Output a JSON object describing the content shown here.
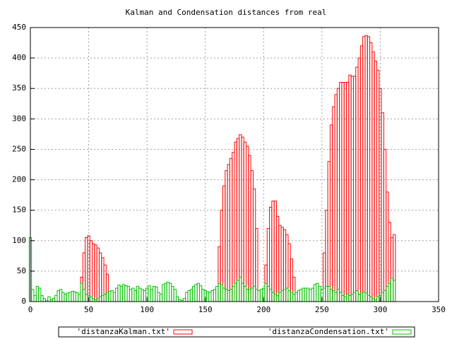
{
  "chart_data": {
    "type": "bar",
    "title": "Kalman and Condensation distances from real",
    "xlim": [
      0,
      350
    ],
    "xticks": [
      0,
      50,
      100,
      150,
      200,
      250,
      300,
      350
    ],
    "ylim": [
      0,
      450
    ],
    "yticks": [
      0,
      50,
      100,
      150,
      200,
      250,
      300,
      350,
      400,
      450
    ],
    "grid": true,
    "legend": "bottom",
    "x": [
      0,
      2,
      4,
      6,
      8,
      10,
      12,
      14,
      16,
      18,
      20,
      22,
      24,
      26,
      28,
      30,
      32,
      34,
      36,
      38,
      40,
      42,
      44,
      46,
      48,
      50,
      52,
      54,
      56,
      58,
      60,
      62,
      64,
      66,
      68,
      70,
      72,
      74,
      76,
      78,
      80,
      82,
      84,
      86,
      88,
      90,
      92,
      94,
      96,
      98,
      100,
      102,
      104,
      106,
      108,
      110,
      112,
      114,
      116,
      118,
      120,
      122,
      124,
      126,
      128,
      130,
      132,
      134,
      136,
      138,
      140,
      142,
      144,
      146,
      148,
      150,
      152,
      154,
      156,
      158,
      160,
      162,
      164,
      166,
      168,
      170,
      172,
      174,
      176,
      178,
      180,
      182,
      184,
      186,
      188,
      190,
      192,
      194,
      196,
      198,
      200,
      202,
      204,
      206,
      208,
      210,
      212,
      214,
      216,
      218,
      220,
      222,
      224,
      226,
      228,
      230,
      232,
      234,
      236,
      238,
      240,
      242,
      244,
      246,
      248,
      250,
      252,
      254,
      256,
      258,
      260,
      262,
      264,
      266,
      268,
      270,
      272,
      274,
      276,
      278,
      280,
      282,
      284,
      286,
      288,
      290,
      292,
      294,
      296,
      298,
      300,
      302,
      304,
      306,
      308,
      310,
      312
    ],
    "series": [
      {
        "name": "'distanzaKalman.txt'",
        "color": "#ff0000",
        "values": [
          0,
          0,
          0,
          0,
          0,
          0,
          0,
          0,
          0,
          0,
          0,
          0,
          0,
          0,
          0,
          0,
          0,
          0,
          0,
          0,
          0,
          0,
          40,
          80,
          105,
          108,
          100,
          95,
          93,
          88,
          80,
          72,
          60,
          45,
          0,
          0,
          0,
          0,
          0,
          0,
          0,
          0,
          0,
          0,
          0,
          0,
          0,
          0,
          0,
          0,
          0,
          0,
          0,
          0,
          0,
          0,
          0,
          0,
          0,
          0,
          0,
          0,
          0,
          0,
          0,
          0,
          0,
          0,
          0,
          0,
          0,
          0,
          0,
          0,
          0,
          0,
          0,
          0,
          0,
          0,
          0,
          90,
          150,
          190,
          215,
          225,
          235,
          245,
          262,
          268,
          274,
          270,
          262,
          255,
          240,
          215,
          185,
          120,
          0,
          0,
          0,
          60,
          120,
          155,
          165,
          165,
          140,
          125,
          122,
          118,
          110,
          95,
          70,
          40,
          0,
          0,
          0,
          0,
          0,
          0,
          0,
          0,
          0,
          0,
          0,
          0,
          80,
          150,
          230,
          290,
          320,
          340,
          350,
          360,
          360,
          360,
          360,
          372,
          370,
          370,
          385,
          400,
          420,
          435,
          437,
          435,
          425,
          410,
          395,
          380,
          350,
          310,
          250,
          180,
          130,
          105,
          110
        ]
      },
      {
        "name": "'distanzaCondensation.txt'",
        "color": "#00c000",
        "values": [
          105,
          20,
          10,
          25,
          22,
          10,
          5,
          2,
          8,
          3,
          5,
          10,
          18,
          20,
          15,
          12,
          14,
          15,
          17,
          16,
          15,
          12,
          30,
          20,
          12,
          10,
          8,
          5,
          3,
          5,
          8,
          10,
          12,
          15,
          17,
          18,
          15,
          22,
          27,
          25,
          28,
          26,
          25,
          20,
          22,
          18,
          25,
          22,
          20,
          18,
          22,
          26,
          20,
          25,
          24,
          15,
          12,
          28,
          30,
          32,
          30,
          25,
          20,
          8,
          3,
          2,
          5,
          15,
          18,
          20,
          25,
          28,
          30,
          26,
          20,
          18,
          16,
          15,
          18,
          20,
          25,
          30,
          28,
          22,
          20,
          18,
          20,
          25,
          30,
          35,
          40,
          30,
          25,
          20,
          20,
          22,
          25,
          20,
          18,
          20,
          22,
          30,
          25,
          20,
          15,
          12,
          10,
          15,
          18,
          20,
          22,
          18,
          15,
          12,
          15,
          18,
          20,
          22,
          22,
          22,
          20,
          22,
          28,
          30,
          25,
          20,
          22,
          25,
          25,
          20,
          18,
          15,
          20,
          15,
          10,
          8,
          12,
          10,
          12,
          15,
          18,
          12,
          14,
          16,
          14,
          10,
          8,
          5,
          3,
          8,
          10,
          15,
          18,
          25,
          30,
          38,
          35
        ]
      }
    ]
  }
}
